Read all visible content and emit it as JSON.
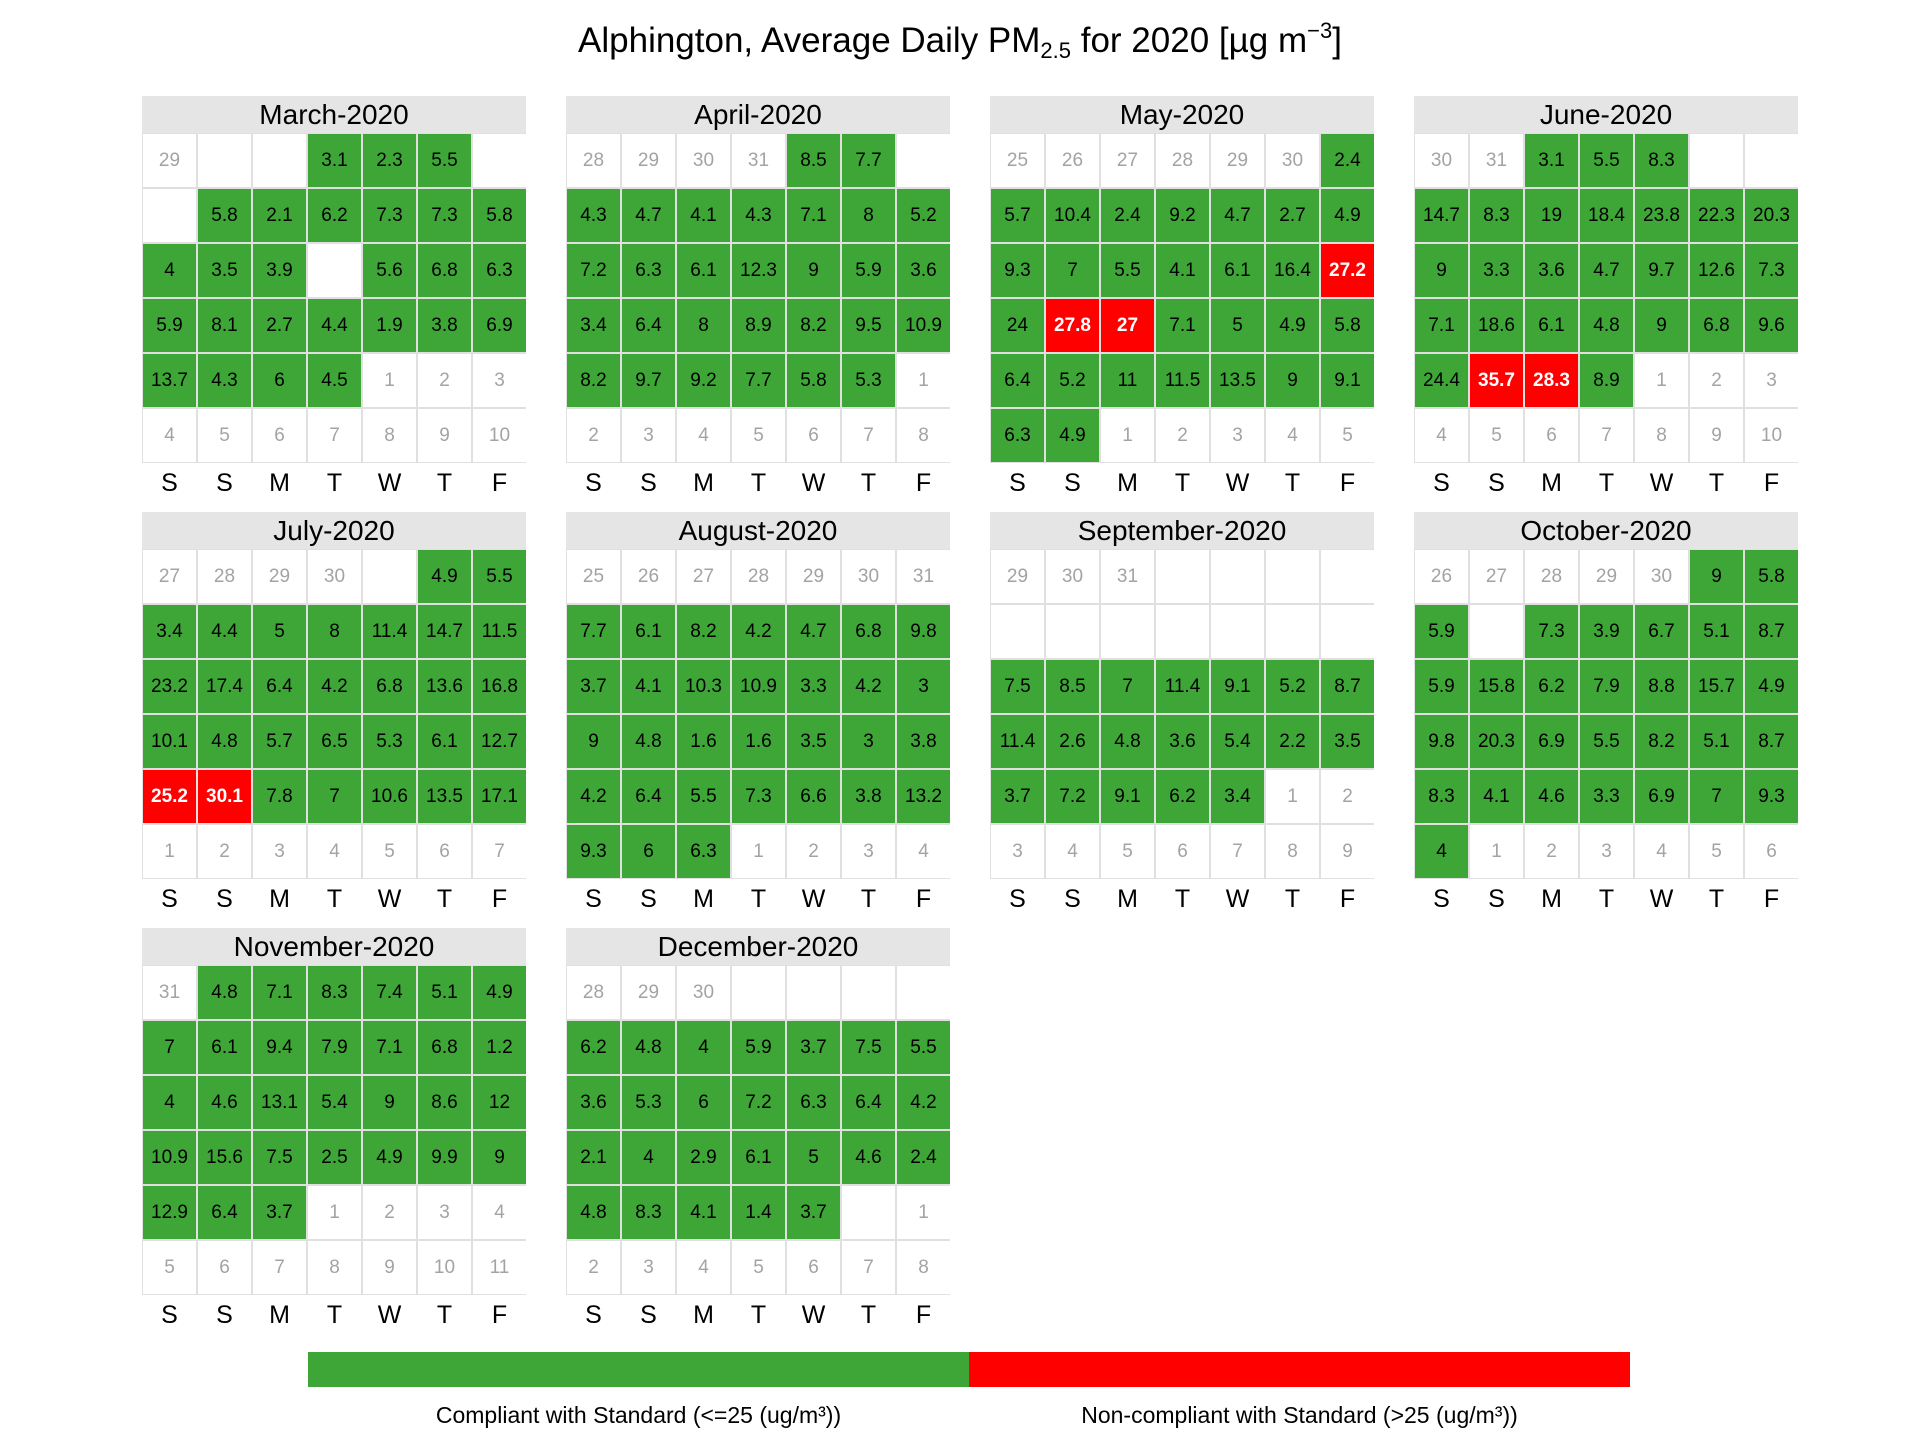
{
  "chart_data": {
    "type": "heatmap",
    "title": {
      "prefix": "Alphington, Average Daily PM",
      "subscript": "2.5",
      "middle": " for 2020 [µg m",
      "superscript": "−3",
      "suffix": "]"
    },
    "weekday_labels": [
      "S",
      "S",
      "M",
      "T",
      "W",
      "T",
      "F"
    ],
    "threshold": 25,
    "colors": {
      "compliant": "#3da636",
      "non_compliant": "#ff0000",
      "missing": "#ffffff",
      "other_month_text": "#a3a3a3"
    },
    "legend": {
      "placement": "bottom",
      "items": [
        {
          "label": "Compliant with Standard (<=25 (ug/m³))",
          "color": "#3da636"
        },
        {
          "label": "Non-compliant with Standard (>25 (ug/m³))",
          "color": "#ff0000"
        }
      ]
    },
    "months": [
      {
        "name": "March-2020",
        "rows": [
          [
            "29",
            "",
            "",
            "3.1",
            "2.3",
            "5.5",
            ""
          ],
          [
            "",
            "5.8",
            "2.1",
            "6.2",
            "7.3",
            "7.3",
            "5.8"
          ],
          [
            "4",
            "3.5",
            "3.9",
            "",
            "5.6",
            "6.8",
            "6.3"
          ],
          [
            "5.9",
            "8.1",
            "2.7",
            "4.4",
            "1.9",
            "3.8",
            "6.9"
          ],
          [
            "13.7",
            "4.3",
            "6",
            "4.5",
            "1",
            "2",
            "3"
          ],
          [
            "4",
            "5",
            "6",
            "7",
            "8",
            "9",
            "10"
          ]
        ],
        "flags": [
          [
            "o",
            "x",
            "x",
            "v",
            "v",
            "v",
            "x"
          ],
          [
            "x",
            "v",
            "v",
            "v",
            "v",
            "v",
            "v"
          ],
          [
            "v",
            "v",
            "v",
            "x",
            "v",
            "v",
            "v"
          ],
          [
            "v",
            "v",
            "v",
            "v",
            "v",
            "v",
            "v"
          ],
          [
            "v",
            "v",
            "v",
            "v",
            "o",
            "o",
            "o"
          ],
          [
            "o",
            "o",
            "o",
            "o",
            "o",
            "o",
            "o"
          ]
        ]
      },
      {
        "name": "April-2020",
        "rows": [
          [
            "28",
            "29",
            "30",
            "31",
            "8.5",
            "7.7",
            ""
          ],
          [
            "4.3",
            "4.7",
            "4.1",
            "4.3",
            "7.1",
            "8",
            "5.2"
          ],
          [
            "7.2",
            "6.3",
            "6.1",
            "12.3",
            "9",
            "5.9",
            "3.6"
          ],
          [
            "3.4",
            "6.4",
            "8",
            "8.9",
            "8.2",
            "9.5",
            "10.9"
          ],
          [
            "8.2",
            "9.7",
            "9.2",
            "7.7",
            "5.8",
            "5.3",
            "1"
          ],
          [
            "2",
            "3",
            "4",
            "5",
            "6",
            "7",
            "8"
          ]
        ],
        "flags": [
          [
            "o",
            "o",
            "o",
            "o",
            "v",
            "v",
            "x"
          ],
          [
            "v",
            "v",
            "v",
            "v",
            "v",
            "v",
            "v"
          ],
          [
            "v",
            "v",
            "v",
            "v",
            "v",
            "v",
            "v"
          ],
          [
            "v",
            "v",
            "v",
            "v",
            "v",
            "v",
            "v"
          ],
          [
            "v",
            "v",
            "v",
            "v",
            "v",
            "v",
            "o"
          ],
          [
            "o",
            "o",
            "o",
            "o",
            "o",
            "o",
            "o"
          ]
        ]
      },
      {
        "name": "May-2020",
        "rows": [
          [
            "25",
            "26",
            "27",
            "28",
            "29",
            "30",
            "2.4"
          ],
          [
            "5.7",
            "10.4",
            "2.4",
            "9.2",
            "4.7",
            "2.7",
            "4.9"
          ],
          [
            "9.3",
            "7",
            "5.5",
            "4.1",
            "6.1",
            "16.4",
            "27.2"
          ],
          [
            "24",
            "27.8",
            "27",
            "7.1",
            "5",
            "4.9",
            "5.8"
          ],
          [
            "6.4",
            "5.2",
            "11",
            "11.5",
            "13.5",
            "9",
            "9.1"
          ],
          [
            "6.3",
            "4.9",
            "1",
            "2",
            "3",
            "4",
            "5"
          ]
        ],
        "flags": [
          [
            "o",
            "o",
            "o",
            "o",
            "o",
            "o",
            "v"
          ],
          [
            "v",
            "v",
            "v",
            "v",
            "v",
            "v",
            "v"
          ],
          [
            "v",
            "v",
            "v",
            "v",
            "v",
            "v",
            "v"
          ],
          [
            "v",
            "v",
            "v",
            "v",
            "v",
            "v",
            "v"
          ],
          [
            "v",
            "v",
            "v",
            "v",
            "v",
            "v",
            "v"
          ],
          [
            "v",
            "v",
            "o",
            "o",
            "o",
            "o",
            "o"
          ]
        ]
      },
      {
        "name": "June-2020",
        "rows": [
          [
            "30",
            "31",
            "3.1",
            "5.5",
            "8.3",
            "",
            ""
          ],
          [
            "14.7",
            "8.3",
            "19",
            "18.4",
            "23.8",
            "22.3",
            "20.3"
          ],
          [
            "9",
            "3.3",
            "3.6",
            "4.7",
            "9.7",
            "12.6",
            "7.3"
          ],
          [
            "7.1",
            "18.6",
            "6.1",
            "4.8",
            "9",
            "6.8",
            "9.6"
          ],
          [
            "24.4",
            "35.7",
            "28.3",
            "8.9",
            "1",
            "2",
            "3"
          ],
          [
            "4",
            "5",
            "6",
            "7",
            "8",
            "9",
            "10"
          ]
        ],
        "flags": [
          [
            "o",
            "o",
            "v",
            "v",
            "v",
            "x",
            "x"
          ],
          [
            "v",
            "v",
            "v",
            "v",
            "v",
            "v",
            "v"
          ],
          [
            "v",
            "v",
            "v",
            "v",
            "v",
            "v",
            "v"
          ],
          [
            "v",
            "v",
            "v",
            "v",
            "v",
            "v",
            "v"
          ],
          [
            "v",
            "v",
            "v",
            "v",
            "o",
            "o",
            "o"
          ],
          [
            "o",
            "o",
            "o",
            "o",
            "o",
            "o",
            "o"
          ]
        ]
      },
      {
        "name": "July-2020",
        "rows": [
          [
            "27",
            "28",
            "29",
            "30",
            "",
            "4.9",
            "5.5"
          ],
          [
            "3.4",
            "4.4",
            "5",
            "8",
            "11.4",
            "14.7",
            "11.5"
          ],
          [
            "23.2",
            "17.4",
            "6.4",
            "4.2",
            "6.8",
            "13.6",
            "16.8"
          ],
          [
            "10.1",
            "4.8",
            "5.7",
            "6.5",
            "5.3",
            "6.1",
            "12.7"
          ],
          [
            "25.2",
            "30.1",
            "7.8",
            "7",
            "10.6",
            "13.5",
            "17.1"
          ],
          [
            "1",
            "2",
            "3",
            "4",
            "5",
            "6",
            "7"
          ]
        ],
        "flags": [
          [
            "o",
            "o",
            "o",
            "o",
            "x",
            "v",
            "v"
          ],
          [
            "v",
            "v",
            "v",
            "v",
            "v",
            "v",
            "v"
          ],
          [
            "v",
            "v",
            "v",
            "v",
            "v",
            "v",
            "v"
          ],
          [
            "v",
            "v",
            "v",
            "v",
            "v",
            "v",
            "v"
          ],
          [
            "v",
            "v",
            "v",
            "v",
            "v",
            "v",
            "v"
          ],
          [
            "o",
            "o",
            "o",
            "o",
            "o",
            "o",
            "o"
          ]
        ]
      },
      {
        "name": "August-2020",
        "rows": [
          [
            "25",
            "26",
            "27",
            "28",
            "29",
            "30",
            "31"
          ],
          [
            "7.7",
            "6.1",
            "8.2",
            "4.2",
            "4.7",
            "6.8",
            "9.8"
          ],
          [
            "3.7",
            "4.1",
            "10.3",
            "10.9",
            "3.3",
            "4.2",
            "3"
          ],
          [
            "9",
            "4.8",
            "1.6",
            "1.6",
            "3.5",
            "3",
            "3.8"
          ],
          [
            "4.2",
            "6.4",
            "5.5",
            "7.3",
            "6.6",
            "3.8",
            "13.2"
          ],
          [
            "9.3",
            "6",
            "6.3",
            "1",
            "2",
            "3",
            "4"
          ]
        ],
        "flags": [
          [
            "o",
            "o",
            "o",
            "o",
            "o",
            "o",
            "o"
          ],
          [
            "v",
            "v",
            "v",
            "v",
            "v",
            "v",
            "v"
          ],
          [
            "v",
            "v",
            "v",
            "v",
            "v",
            "v",
            "v"
          ],
          [
            "v",
            "v",
            "v",
            "v",
            "v",
            "v",
            "v"
          ],
          [
            "v",
            "v",
            "v",
            "v",
            "v",
            "v",
            "v"
          ],
          [
            "v",
            "v",
            "v",
            "o",
            "o",
            "o",
            "o"
          ]
        ]
      },
      {
        "name": "September-2020",
        "rows": [
          [
            "29",
            "30",
            "31",
            "",
            "",
            "",
            ""
          ],
          [
            "",
            "",
            "",
            "",
            "",
            "",
            ""
          ],
          [
            "7.5",
            "8.5",
            "7",
            "11.4",
            "9.1",
            "5.2",
            "8.7"
          ],
          [
            "11.4",
            "2.6",
            "4.8",
            "3.6",
            "5.4",
            "2.2",
            "3.5"
          ],
          [
            "3.7",
            "7.2",
            "9.1",
            "6.2",
            "3.4",
            "1",
            "2"
          ],
          [
            "3",
            "4",
            "5",
            "6",
            "7",
            "8",
            "9"
          ]
        ],
        "flags": [
          [
            "o",
            "o",
            "o",
            "x",
            "x",
            "x",
            "x"
          ],
          [
            "x",
            "x",
            "x",
            "x",
            "x",
            "x",
            "x"
          ],
          [
            "v",
            "v",
            "v",
            "v",
            "v",
            "v",
            "v"
          ],
          [
            "v",
            "v",
            "v",
            "v",
            "v",
            "v",
            "v"
          ],
          [
            "v",
            "v",
            "v",
            "v",
            "v",
            "o",
            "o"
          ],
          [
            "o",
            "o",
            "o",
            "o",
            "o",
            "o",
            "o"
          ]
        ]
      },
      {
        "name": "October-2020",
        "rows": [
          [
            "26",
            "27",
            "28",
            "29",
            "30",
            "9",
            "5.8"
          ],
          [
            "5.9",
            "",
            "7.3",
            "3.9",
            "6.7",
            "5.1",
            "8.7"
          ],
          [
            "5.9",
            "15.8",
            "6.2",
            "7.9",
            "8.8",
            "15.7",
            "4.9"
          ],
          [
            "9.8",
            "20.3",
            "6.9",
            "5.5",
            "8.2",
            "5.1",
            "8.7"
          ],
          [
            "8.3",
            "4.1",
            "4.6",
            "3.3",
            "6.9",
            "7",
            "9.3"
          ],
          [
            "4",
            "1",
            "2",
            "3",
            "4",
            "5",
            "6"
          ]
        ],
        "flags": [
          [
            "o",
            "o",
            "o",
            "o",
            "o",
            "v",
            "v"
          ],
          [
            "v",
            "x",
            "v",
            "v",
            "v",
            "v",
            "v"
          ],
          [
            "v",
            "v",
            "v",
            "v",
            "v",
            "v",
            "v"
          ],
          [
            "v",
            "v",
            "v",
            "v",
            "v",
            "v",
            "v"
          ],
          [
            "v",
            "v",
            "v",
            "v",
            "v",
            "v",
            "v"
          ],
          [
            "v",
            "o",
            "o",
            "o",
            "o",
            "o",
            "o"
          ]
        ]
      },
      {
        "name": "November-2020",
        "rows": [
          [
            "31",
            "4.8",
            "7.1",
            "8.3",
            "7.4",
            "5.1",
            "4.9"
          ],
          [
            "7",
            "6.1",
            "9.4",
            "7.9",
            "7.1",
            "6.8",
            "1.2"
          ],
          [
            "4",
            "4.6",
            "13.1",
            "5.4",
            "9",
            "8.6",
            "12"
          ],
          [
            "10.9",
            "15.6",
            "7.5",
            "2.5",
            "4.9",
            "9.9",
            "9"
          ],
          [
            "12.9",
            "6.4",
            "3.7",
            "1",
            "2",
            "3",
            "4"
          ],
          [
            "5",
            "6",
            "7",
            "8",
            "9",
            "10",
            "11"
          ]
        ],
        "flags": [
          [
            "o",
            "v",
            "v",
            "v",
            "v",
            "v",
            "v"
          ],
          [
            "v",
            "v",
            "v",
            "v",
            "v",
            "v",
            "v"
          ],
          [
            "v",
            "v",
            "v",
            "v",
            "v",
            "v",
            "v"
          ],
          [
            "v",
            "v",
            "v",
            "v",
            "v",
            "v",
            "v"
          ],
          [
            "v",
            "v",
            "v",
            "o",
            "o",
            "o",
            "o"
          ],
          [
            "o",
            "o",
            "o",
            "o",
            "o",
            "o",
            "o"
          ]
        ]
      },
      {
        "name": "December-2020",
        "rows": [
          [
            "28",
            "29",
            "30",
            "",
            "",
            "",
            ""
          ],
          [
            "6.2",
            "4.8",
            "4",
            "5.9",
            "3.7",
            "7.5",
            "5.5"
          ],
          [
            "3.6",
            "5.3",
            "6",
            "7.2",
            "6.3",
            "6.4",
            "4.2"
          ],
          [
            "2.1",
            "4",
            "2.9",
            "6.1",
            "5",
            "4.6",
            "2.4"
          ],
          [
            "4.8",
            "8.3",
            "4.1",
            "1.4",
            "3.7",
            "",
            "1"
          ],
          [
            "2",
            "3",
            "4",
            "5",
            "6",
            "7",
            "8"
          ]
        ],
        "flags": [
          [
            "o",
            "o",
            "o",
            "x",
            "x",
            "x",
            "x"
          ],
          [
            "v",
            "v",
            "v",
            "v",
            "v",
            "v",
            "v"
          ],
          [
            "v",
            "v",
            "v",
            "v",
            "v",
            "v",
            "v"
          ],
          [
            "v",
            "v",
            "v",
            "v",
            "v",
            "v",
            "v"
          ],
          [
            "v",
            "v",
            "v",
            "v",
            "v",
            "x",
            "o"
          ],
          [
            "o",
            "o",
            "o",
            "o",
            "o",
            "o",
            "o"
          ]
        ]
      }
    ]
  }
}
